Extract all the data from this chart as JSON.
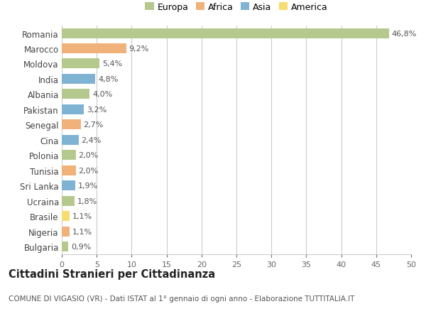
{
  "countries": [
    "Romania",
    "Marocco",
    "Moldova",
    "India",
    "Albania",
    "Pakistan",
    "Senegal",
    "Cina",
    "Polonia",
    "Tunisia",
    "Sri Lanka",
    "Ucraina",
    "Brasile",
    "Nigeria",
    "Bulgaria"
  ],
  "values": [
    46.8,
    9.2,
    5.4,
    4.8,
    4.0,
    3.2,
    2.7,
    2.4,
    2.0,
    2.0,
    1.9,
    1.8,
    1.1,
    1.1,
    0.9
  ],
  "labels": [
    "46,8%",
    "9,2%",
    "5,4%",
    "4,8%",
    "4,0%",
    "3,2%",
    "2,7%",
    "2,4%",
    "2,0%",
    "2,0%",
    "1,9%",
    "1,8%",
    "1,1%",
    "1,1%",
    "0,9%"
  ],
  "continents": [
    "Europa",
    "Africa",
    "Europa",
    "Asia",
    "Europa",
    "Asia",
    "Africa",
    "Asia",
    "Europa",
    "Africa",
    "Asia",
    "Europa",
    "America",
    "Africa",
    "Europa"
  ],
  "colors": {
    "Europa": "#b5c98e",
    "Africa": "#f0b27a",
    "Asia": "#7fb3d3",
    "America": "#f7dc6f"
  },
  "legend_order": [
    "Europa",
    "Africa",
    "Asia",
    "America"
  ],
  "legend_colors": [
    "#b5c98e",
    "#f0b27a",
    "#7fb3d3",
    "#f7dc6f"
  ],
  "title": "Cittadini Stranieri per Cittadinanza",
  "subtitle": "COMUNE DI VIGASIO (VR) - Dati ISTAT al 1° gennaio di ogni anno - Elaborazione TUTTITALIA.IT",
  "xlim": [
    0,
    50
  ],
  "xticks": [
    0,
    5,
    10,
    15,
    20,
    25,
    30,
    35,
    40,
    45,
    50
  ],
  "bg_color": "#ffffff",
  "plot_bg_color": "#ffffff",
  "grid_color": "#cccccc",
  "bar_height": 0.65,
  "label_fontsize": 8,
  "ytick_fontsize": 8.5,
  "xtick_fontsize": 8,
  "title_fontsize": 10.5,
  "subtitle_fontsize": 7.5
}
